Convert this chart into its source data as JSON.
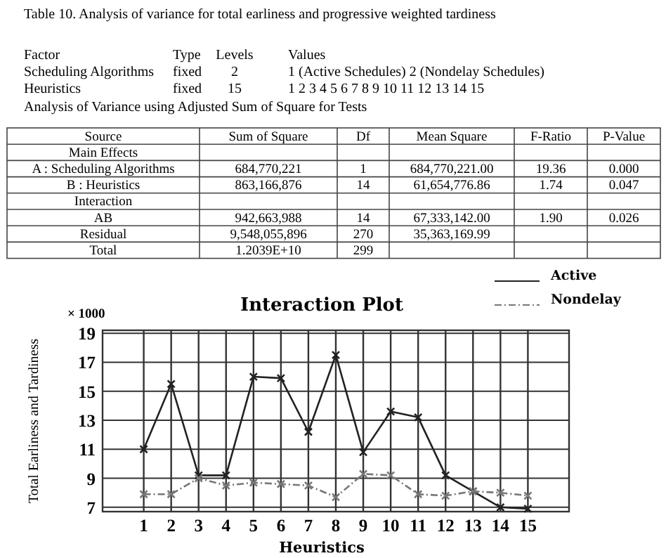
{
  "chart_data": {
    "type": "line",
    "title": "Interaction Plot",
    "xlabel": "Heuristics",
    "ylabel": "Total Earliness and Tardiness",
    "x": [
      1,
      2,
      3,
      4,
      5,
      6,
      7,
      8,
      9,
      10,
      11,
      12,
      13,
      14,
      15
    ],
    "series": [
      {
        "name": "Active",
        "color": "#222222",
        "line_style": "solid",
        "values": [
          11.0,
          15.5,
          9.2,
          9.2,
          16.0,
          15.9,
          12.2,
          17.5,
          10.8,
          13.6,
          13.2,
          9.2,
          8.1,
          7.0,
          6.9
        ]
      },
      {
        "name": "Nondelay",
        "color": "#777777",
        "line_style": "dashed",
        "values": [
          7.9,
          7.9,
          9.0,
          8.5,
          8.7,
          8.6,
          8.5,
          7.7,
          9.3,
          9.2,
          7.9,
          7.8,
          8.1,
          8.0,
          7.8
        ]
      }
    ],
    "xlim": [
      -0.5,
      16.5
    ],
    "xticks": [
      1,
      2,
      3,
      4,
      5,
      6,
      7,
      8,
      9,
      10,
      11,
      12,
      13,
      14,
      15
    ],
    "ylim": [
      6.7,
      19.2
    ],
    "yticks": [
      7,
      9,
      11,
      13,
      15,
      17,
      19
    ],
    "grid": true,
    "legend": "top right",
    "marker": "cross",
    "annotations": [
      "× 1000",
      "Table 10. Analysis of variance for total earliness and progressive weighted tardiness",
      "Factor",
      "Type",
      "Levels",
      "Values",
      "Scheduling Algorithms",
      "fixed",
      "2",
      "1 (Active Schedules) 2 (Nondelay Schedules)",
      "Heuristics",
      "fixed",
      "15",
      "1 2 3 4 5 6 7 8 9 10 11 12 13 14 15",
      "Analysis of Variance using Adjusted Sum of Square for Tests",
      "Source",
      "Sum of Square",
      "Df",
      "Mean Square",
      "F-Ratio",
      "P-Value",
      "Main Effects",
      "A : Scheduling Algorithms",
      "684,770,221",
      "1",
      "684,770,221.00",
      "19.36",
      "0.000",
      "B : Heuristics",
      "863,166,876",
      "14",
      "61,654,776.86",
      "1.74",
      "0.047",
      "Interaction",
      "AB",
      "942,663,988",
      "14",
      "67,333,142.00",
      "1.90",
      "0.026",
      "Residual",
      "9,548,055,896",
      "270",
      "35,363,169.99",
      "Total",
      "1.2039E+10",
      "299"
    ]
  }
}
